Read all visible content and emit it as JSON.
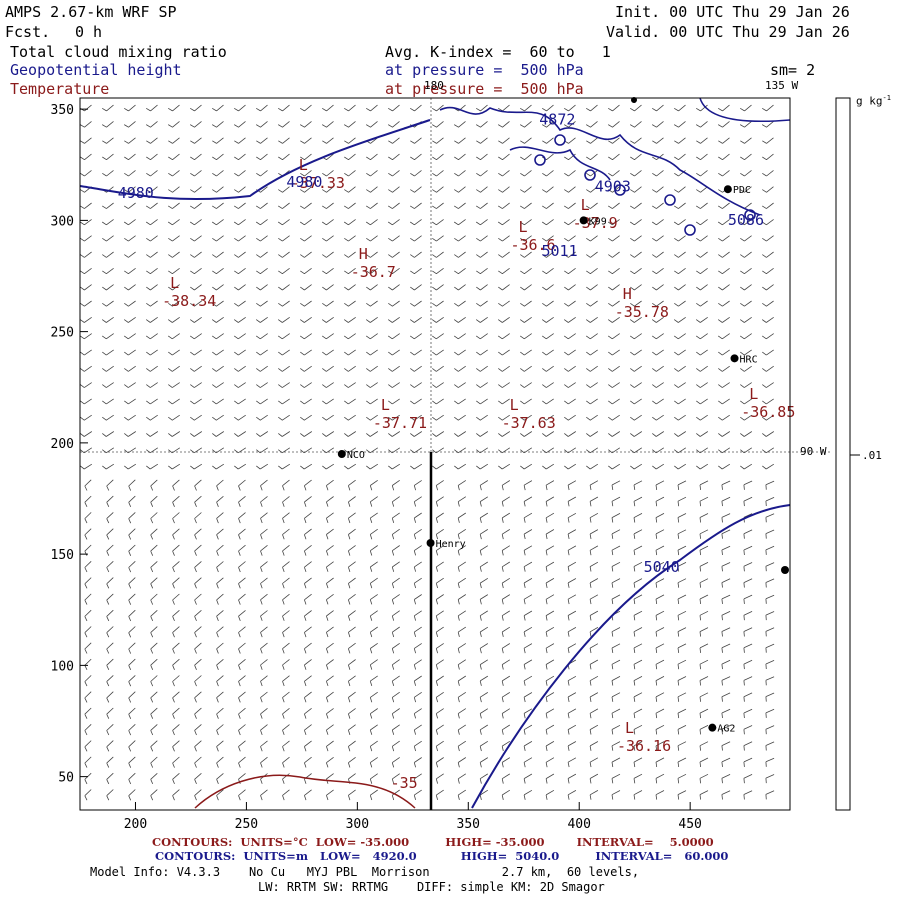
{
  "header": {
    "model_title": "AMPS 2.67-km WRF SP",
    "fcst_label": "Fcst.",
    "fcst_value": "0 h",
    "init": "Init. 00 UTC Thu 29 Jan 26",
    "valid": "Valid. 00 UTC Thu 29 Jan 26",
    "field_1": "Total cloud mixing ratio",
    "field_2": "Geopotential height",
    "field_3": "Temperature",
    "avg_line": "Avg. K-index =  60 to   1",
    "pressure_1": "at pressure =  500 hPa",
    "pressure_2": "at pressure =  500 hPa",
    "sm": "sm= 2"
  },
  "colorbar": {
    "unit": "g kg",
    "unit_sup": "-1",
    "tick_label": ".01",
    "tick_value": 0.01
  },
  "map_labels": {
    "lon_180": "180",
    "lon_135w": "135 W",
    "lon_90w": "90 W"
  },
  "axes": {
    "x_ticks": [
      200,
      250,
      300,
      350,
      400,
      450
    ],
    "y_ticks": [
      50,
      100,
      150,
      200,
      250,
      300,
      350
    ],
    "x_range": [
      175,
      495
    ],
    "y_range": [
      35,
      355
    ]
  },
  "stations": [
    {
      "name": "NCO",
      "x": 293,
      "y": 195
    },
    {
      "name": "Henry",
      "x": 333,
      "y": 155
    },
    {
      "name": "HRC",
      "x": 470,
      "y": 238
    },
    {
      "name": "AG2",
      "x": 460,
      "y": 72
    },
    {
      "name": "PDC",
      "x": 467,
      "y": 314
    },
    {
      "name": "K99",
      "x": 402,
      "y": 300
    }
  ],
  "pressure_centers": [
    {
      "symbol": "L",
      "value": "-37.33",
      "x": 270,
      "y": 320
    },
    {
      "symbol": "H",
      "value": "-36.7",
      "x": 297,
      "y": 280
    },
    {
      "symbol": "L",
      "value": "-38.34",
      "x": 212,
      "y": 267
    },
    {
      "symbol": "L",
      "value": "-36.6",
      "x": 369,
      "y": 292
    },
    {
      "symbol": "L",
      "value": "-37.71",
      "x": 307,
      "y": 212
    },
    {
      "symbol": "L",
      "value": "-37.63",
      "x": 365,
      "y": 212
    },
    {
      "symbol": "H",
      "value": "-35.78",
      "x": 416,
      "y": 262
    },
    {
      "symbol": "L",
      "value": "-36.85",
      "x": 473,
      "y": 217
    },
    {
      "symbol": "L",
      "value": "-36.16",
      "x": 417,
      "y": 67
    },
    {
      "symbol": "L",
      "value": "-37.9",
      "x": 397,
      "y": 302
    }
  ],
  "height_labels": [
    {
      "text": "4980",
      "x": 192,
      "y": 310
    },
    {
      "text": "4980",
      "x": 268,
      "y": 315
    },
    {
      "text": "4872",
      "x": 382,
      "y": 343
    },
    {
      "text": "4903",
      "x": 407,
      "y": 313
    },
    {
      "text": "5011",
      "x": 383,
      "y": 284
    },
    {
      "text": "5040",
      "x": 429,
      "y": 142
    },
    {
      "text": "5086",
      "x": 467,
      "y": 298
    }
  ],
  "temp_contour_label": {
    "text": "-35",
    "x": 315,
    "y": 45
  },
  "footer": {
    "red_line": "CONTOURS:  UNITS=°C  LOW= -35.000         HIGH= -35.000        INTERVAL=    5.0000",
    "blue_line": "CONTOURS:  UNITS=m   LOW=   4920.0           HIGH=  5040.0         INTERVAL=   60.000",
    "model_info": "Model Info: V4.3.3    No Cu   MYJ PBL  Morrison          2.7 km,  60 levels,",
    "physics": "LW: RRTM SW: RRTMG    DIFF: simple KM: 2D Smagor"
  },
  "colors": {
    "height": "#1a1a8c",
    "temperature": "#8b1a1a",
    "cloud": "#8b1a1a"
  }
}
